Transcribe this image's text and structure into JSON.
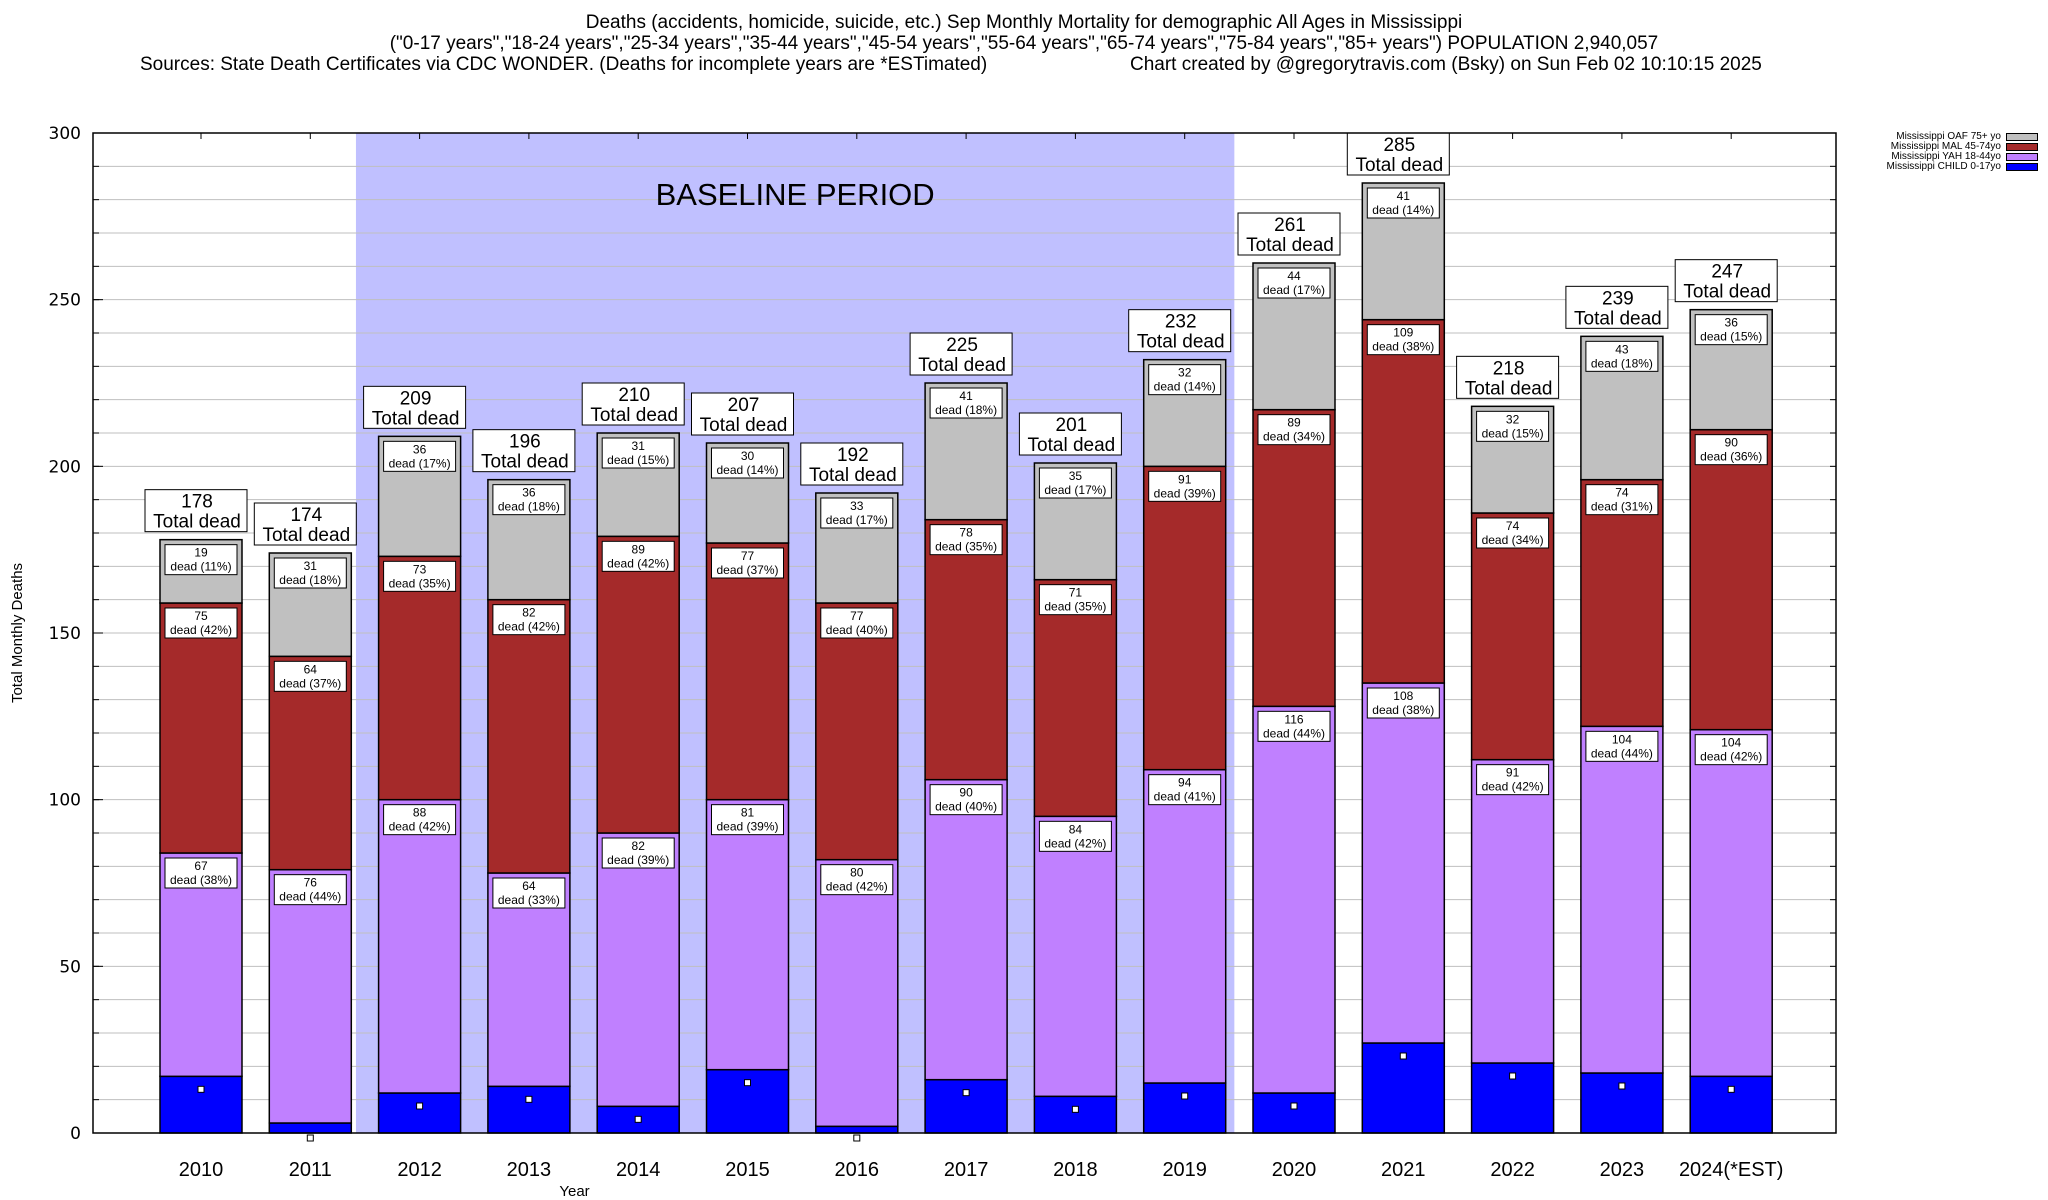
{
  "header": {
    "title": "Deaths (accidents, homicide, suicide, etc.) Sep Monthly Mortality for demographic All Ages in Mississippi",
    "subtitle": "(\"0-17 years\",\"18-24 years\",\"25-34 years\",\"35-44 years\",\"45-54 years\",\"55-64 years\",\"65-74 years\",\"75-84 years\",\"85+ years\") POPULATION 2,940,057",
    "sources": "Sources: State Death Certificates via CDC WONDER. (Deaths for incomplete years are *ESTimated)",
    "credit": "Chart created by @gregorytravis.com (Bsky) on Sun Feb 02 10:10:15 2025"
  },
  "chart_data": {
    "type": "bar",
    "stacked": true,
    "title": "Deaths (accidents, homicide, suicide, etc.) Sep Monthly Mortality for demographic All Ages in Mississippi",
    "xlabel": "Year",
    "ylabel": "Total Monthly Deaths",
    "ylim": [
      0,
      300
    ],
    "yticks": [
      0,
      50,
      100,
      150,
      200,
      250,
      300
    ],
    "grid": true,
    "legend_position": "top-right-outside",
    "categories": [
      "2010",
      "2011",
      "2012",
      "2013",
      "2014",
      "2015",
      "2016",
      "2017",
      "2018",
      "2019",
      "2020",
      "2021",
      "2022",
      "2023",
      "2024(*EST)"
    ],
    "series": [
      {
        "name": "Mississippi CHILD 0-17yo",
        "color": "#0000ff",
        "values": [
          17,
          3,
          12,
          14,
          8,
          19,
          2,
          16,
          11,
          15,
          12,
          27,
          21,
          18,
          17
        ],
        "labeled": false
      },
      {
        "name": "Mississippi YAH 18-44yo",
        "color": "#c080ff",
        "values": [
          67,
          76,
          88,
          64,
          82,
          81,
          80,
          90,
          84,
          94,
          116,
          108,
          91,
          104,
          104
        ],
        "percents": [
          38,
          44,
          42,
          33,
          39,
          39,
          42,
          40,
          42,
          41,
          44,
          38,
          42,
          44,
          42
        ]
      },
      {
        "name": "Mississippi MAL 45-74yo",
        "color": "#a52a2a",
        "values": [
          75,
          64,
          73,
          82,
          89,
          77,
          77,
          78,
          71,
          91,
          89,
          109,
          74,
          74,
          90
        ],
        "percents": [
          42,
          37,
          35,
          42,
          42,
          37,
          40,
          35,
          35,
          39,
          34,
          38,
          34,
          31,
          36
        ]
      },
      {
        "name": "Mississippi OAF 75+ yo",
        "color": "#c0c0c0",
        "values": [
          19,
          31,
          36,
          36,
          31,
          30,
          33,
          41,
          35,
          32,
          44,
          41,
          32,
          43,
          36
        ],
        "percents": [
          11,
          18,
          17,
          18,
          15,
          14,
          17,
          18,
          17,
          14,
          17,
          14,
          15,
          18,
          15
        ]
      }
    ],
    "totals": [
      178,
      174,
      209,
      196,
      210,
      207,
      192,
      225,
      201,
      232,
      261,
      285,
      218,
      239,
      247
    ],
    "total_label_suffix": "Total dead",
    "segment_label_word": "dead",
    "annotation": {
      "text": "BASELINE PERIOD",
      "range": [
        "2012",
        "2019"
      ],
      "color": "#c0c0ff"
    }
  },
  "legend_order": [
    3,
    2,
    1,
    0
  ]
}
